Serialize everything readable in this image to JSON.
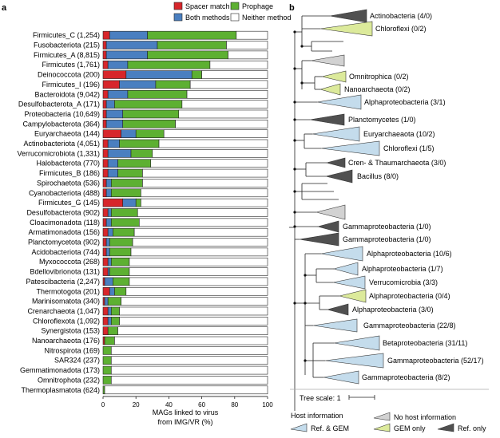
{
  "chart_data": [
    {
      "type": "bar",
      "panel": "a",
      "orientation": "horizontal",
      "stacked": true,
      "xlabel": "MAGs linked to virus\nfrom IMG/VR (%)",
      "xlim": [
        0,
        100
      ],
      "xticks": [
        0,
        20,
        40,
        60,
        80,
        100
      ],
      "grid": false,
      "legend_position": "top",
      "categories": [
        "Firmicutes_C (1,254)",
        "Fusobacteriota (215)",
        "Firmicutes_A (8,815)",
        "Firmicutes (1,761)",
        "Deinococcota (200)",
        "Firmicutes_I (196)",
        "Bacteroidota (9,042)",
        "Desulfobacterota_A (171)",
        "Proteobacteria (10,649)",
        "Campylobacterota (364)",
        "Euryarchaeota (144)",
        "Actinobacteriota (4,051)",
        "Verrucomicrobiota (1,331)",
        "Halobacterota (770)",
        "Firmicutes_B (186)",
        "Spirochaetota (536)",
        "Cyanobacteriota (488)",
        "Firmicutes_G (145)",
        "Desulfobacterota (902)",
        "Cloacimonadota (118)",
        "Armatimonadota (156)",
        "Planctomycetota (902)",
        "Acidobacteriota (744)",
        "Myxococcota (268)",
        "Bdellovibrionota (131)",
        "Patescibacteria (2,247)",
        "Thermotogota (201)",
        "Marinisomatota (340)",
        "Crenarchaeota (1,047)",
        "Chloroflexota (1,092)",
        "Synergistota (153)",
        "Nanoarchaeota (176)",
        "Nitrospirota (169)",
        "SAR324 (237)",
        "Gemmatimonadota (173)",
        "Omnitrophota (232)",
        "Thermoplasmatota (624)"
      ],
      "series": [
        {
          "name": "Spacer match",
          "color": "#d7262b",
          "values": [
            4,
            2,
            2,
            3,
            14,
            10,
            3,
            2,
            2,
            2,
            11,
            3,
            3,
            3,
            3,
            2,
            2,
            12,
            3,
            2,
            3,
            2,
            2,
            3,
            3,
            1,
            4,
            1,
            3,
            3,
            3,
            1,
            0,
            0,
            0,
            0,
            0
          ]
        },
        {
          "name": "Both methods",
          "color": "#4a7fc0",
          "values": [
            23,
            31,
            25,
            12,
            40,
            22,
            12,
            5,
            10,
            10,
            9,
            7,
            14,
            6,
            6,
            3,
            3,
            8,
            2,
            3,
            3,
            2,
            2,
            2,
            1,
            5,
            3,
            2,
            2,
            2,
            0,
            0,
            0,
            0,
            0,
            0,
            0
          ]
        },
        {
          "name": "Prophage",
          "color": "#5db032",
          "values": [
            54,
            42,
            49,
            50,
            6,
            21,
            36,
            41,
            34,
            32,
            17,
            24,
            13,
            20,
            15,
            19,
            18,
            3,
            16,
            17,
            13,
            14,
            13,
            11,
            12,
            10,
            7,
            8,
            5,
            5,
            6,
            6,
            5,
            5,
            5,
            5,
            1
          ]
        },
        {
          "name": "Neither method",
          "color": "#ffffff",
          "values": [
            19,
            25,
            24,
            35,
            40,
            47,
            49,
            52,
            54,
            56,
            63,
            66,
            70,
            71,
            76,
            76,
            77,
            77,
            79,
            78,
            81,
            82,
            83,
            84,
            84,
            84,
            86,
            89,
            90,
            90,
            91,
            93,
            95,
            95,
            95,
            95,
            99
          ]
        }
      ]
    },
    {
      "type": "tree",
      "panel": "b",
      "tree_scale_label": "Tree scale: 1",
      "legend_title": "Host information",
      "legend_items": [
        {
          "key": "ref_gem",
          "label": "Ref. & GEM",
          "color": "#c4dcec"
        },
        {
          "key": "none",
          "label": "No host information",
          "color": "#d2d2d2"
        },
        {
          "key": "gem",
          "label": "GEM only",
          "color": "#dcea9b"
        },
        {
          "key": "ref",
          "label": "Ref. only",
          "color": "#505050"
        }
      ],
      "clades": [
        {
          "label": "Actinobacteria (4/0)",
          "host": "ref"
        },
        {
          "label": "Chloroflexi (0/2)",
          "host": "gem"
        },
        {
          "label": "",
          "host": "none"
        },
        {
          "label": "Omnitrophica (0/2)",
          "host": "gem"
        },
        {
          "label": "Nanoarchaeota (0/2)",
          "host": "gem"
        },
        {
          "label": "Alphaproteobacteria (3/1)",
          "host": "ref_gem"
        },
        {
          "label": "Planctomycetes (1/0)",
          "host": "ref"
        },
        {
          "label": "Euryarchaeaota (10/2)",
          "host": "ref_gem"
        },
        {
          "label": "Chloroflexi (1/5)",
          "host": "ref_gem"
        },
        {
          "label": "Cren- & Thaumarchaeota (3/0)",
          "host": "ref"
        },
        {
          "label": "Bacillus (8/0)",
          "host": "ref"
        },
        {
          "label": "",
          "host": "none"
        },
        {
          "label": "Gammaproteobacteria (1/0)",
          "host": "ref"
        },
        {
          "label": "Gammaproteobacteria (1/0)",
          "host": "ref"
        },
        {
          "label": "Alphaproteobacteria (10/6)",
          "host": "ref_gem"
        },
        {
          "label": "Alphaproteobacteria (1/7)",
          "host": "ref_gem"
        },
        {
          "label": "Verrucomicrobia (3/3)",
          "host": "ref_gem"
        },
        {
          "label": "Alphaproteobacteria (0/4)",
          "host": "gem"
        },
        {
          "label": "Alphaproteobacteria (3/0)",
          "host": "ref"
        },
        {
          "label": "Gammaproteobacteria (22/8)",
          "host": "ref_gem"
        },
        {
          "label": "Betaproteobacteria (31/11)",
          "host": "ref_gem"
        },
        {
          "label": "Gammaproteobacteria (52/17)",
          "host": "ref_gem"
        },
        {
          "label": "Gammaproteobacteria (8/2)",
          "host": "ref_gem"
        }
      ]
    }
  ]
}
